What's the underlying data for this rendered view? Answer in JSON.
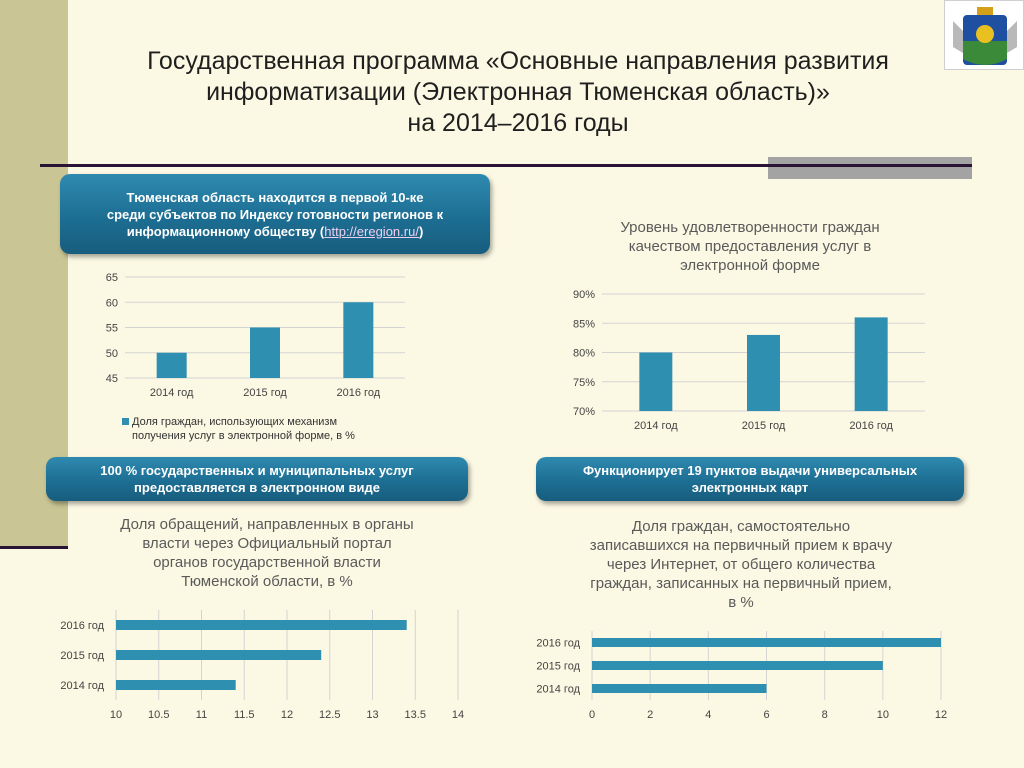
{
  "slide": {
    "title_line1": "Государственная программа «Основные направления развития",
    "title_line2": "информатизации (Электронная Тюменская область)»",
    "title_line3": "на 2014–2016 годы"
  },
  "callouts": {
    "rating": {
      "line1": "Тюменская область находится в первой 10-ке",
      "line2": "среди субъектов по Индексу готовности регионов к",
      "line3_pre": "информационному обществу (",
      "link": "http://eregion.ru/",
      "line3_post": ")"
    },
    "services": "100 % государственных и муниципальных услуг предоставляется в электронном виде",
    "cards": "Функционирует 19 пунктов выдачи универсальных электронных карт"
  },
  "colors": {
    "bar": "#2e8fb0",
    "callout": "#1d6e93",
    "background": "#fbf8e3",
    "accent": "#2a1436"
  },
  "icons": {
    "emblem": "tyumen-coat-of-arms-icon"
  },
  "chart_data": [
    {
      "type": "bar",
      "categories": [
        "2014 год",
        "2015 год",
        "2016 год"
      ],
      "series": [
        {
          "name": "Доля граждан, использующих механизм получения услуг в электронной форме, в %",
          "values": [
            50,
            55,
            60
          ]
        }
      ],
      "title": "",
      "ylim": [
        45,
        65
      ],
      "yticks": [
        "65",
        "60",
        "55",
        "50",
        "45"
      ],
      "legend": "bottom",
      "legend_line1": "Доля граждан, использующих механизм",
      "legend_line2": "получения услуг в электронной форме, в %",
      "grid": true
    },
    {
      "type": "bar",
      "categories": [
        "2014 год",
        "2015 год",
        "2016 год"
      ],
      "values": [
        80,
        83,
        86
      ],
      "title_line1": "Уровень удовлетворенности граждан",
      "title_line2": "качеством предоставления услуг в",
      "title_line3": "электронной форме",
      "ylim": [
        70,
        90
      ],
      "yticks": [
        "90%",
        "85%",
        "80%",
        "75%",
        "70%"
      ],
      "grid": true
    },
    {
      "type": "bar",
      "orientation": "horizontal",
      "categories": [
        "2016 год",
        "2015 год",
        "2014 год"
      ],
      "values": [
        13.4,
        12.4,
        11.4
      ],
      "title_line1": "Доля обращений, направленных в органы",
      "title_line2": "власти через Официальный портал",
      "title_line3": "органов государственной власти",
      "title_line4": "Тюменской области, в %",
      "xlim": [
        10,
        14
      ],
      "xticks": [
        "10",
        "10.5",
        "11",
        "11.5",
        "12",
        "12.5",
        "13",
        "13.5",
        "14"
      ],
      "grid": true
    },
    {
      "type": "bar",
      "orientation": "horizontal",
      "categories": [
        "2016 год",
        "2015 год",
        "2014 год"
      ],
      "values": [
        12,
        10,
        6
      ],
      "title_line1": "Доля граждан, самостоятельно",
      "title_line2": "записавшихся на первичный прием к врачу",
      "title_line3": "через Интернет, от общего количества",
      "title_line4": "граждан, записанных на первичный прием,",
      "title_line5": "в %",
      "xlim": [
        0,
        12
      ],
      "xticks": [
        "0",
        "2",
        "4",
        "6",
        "8",
        "10",
        "12"
      ],
      "grid": true
    }
  ]
}
